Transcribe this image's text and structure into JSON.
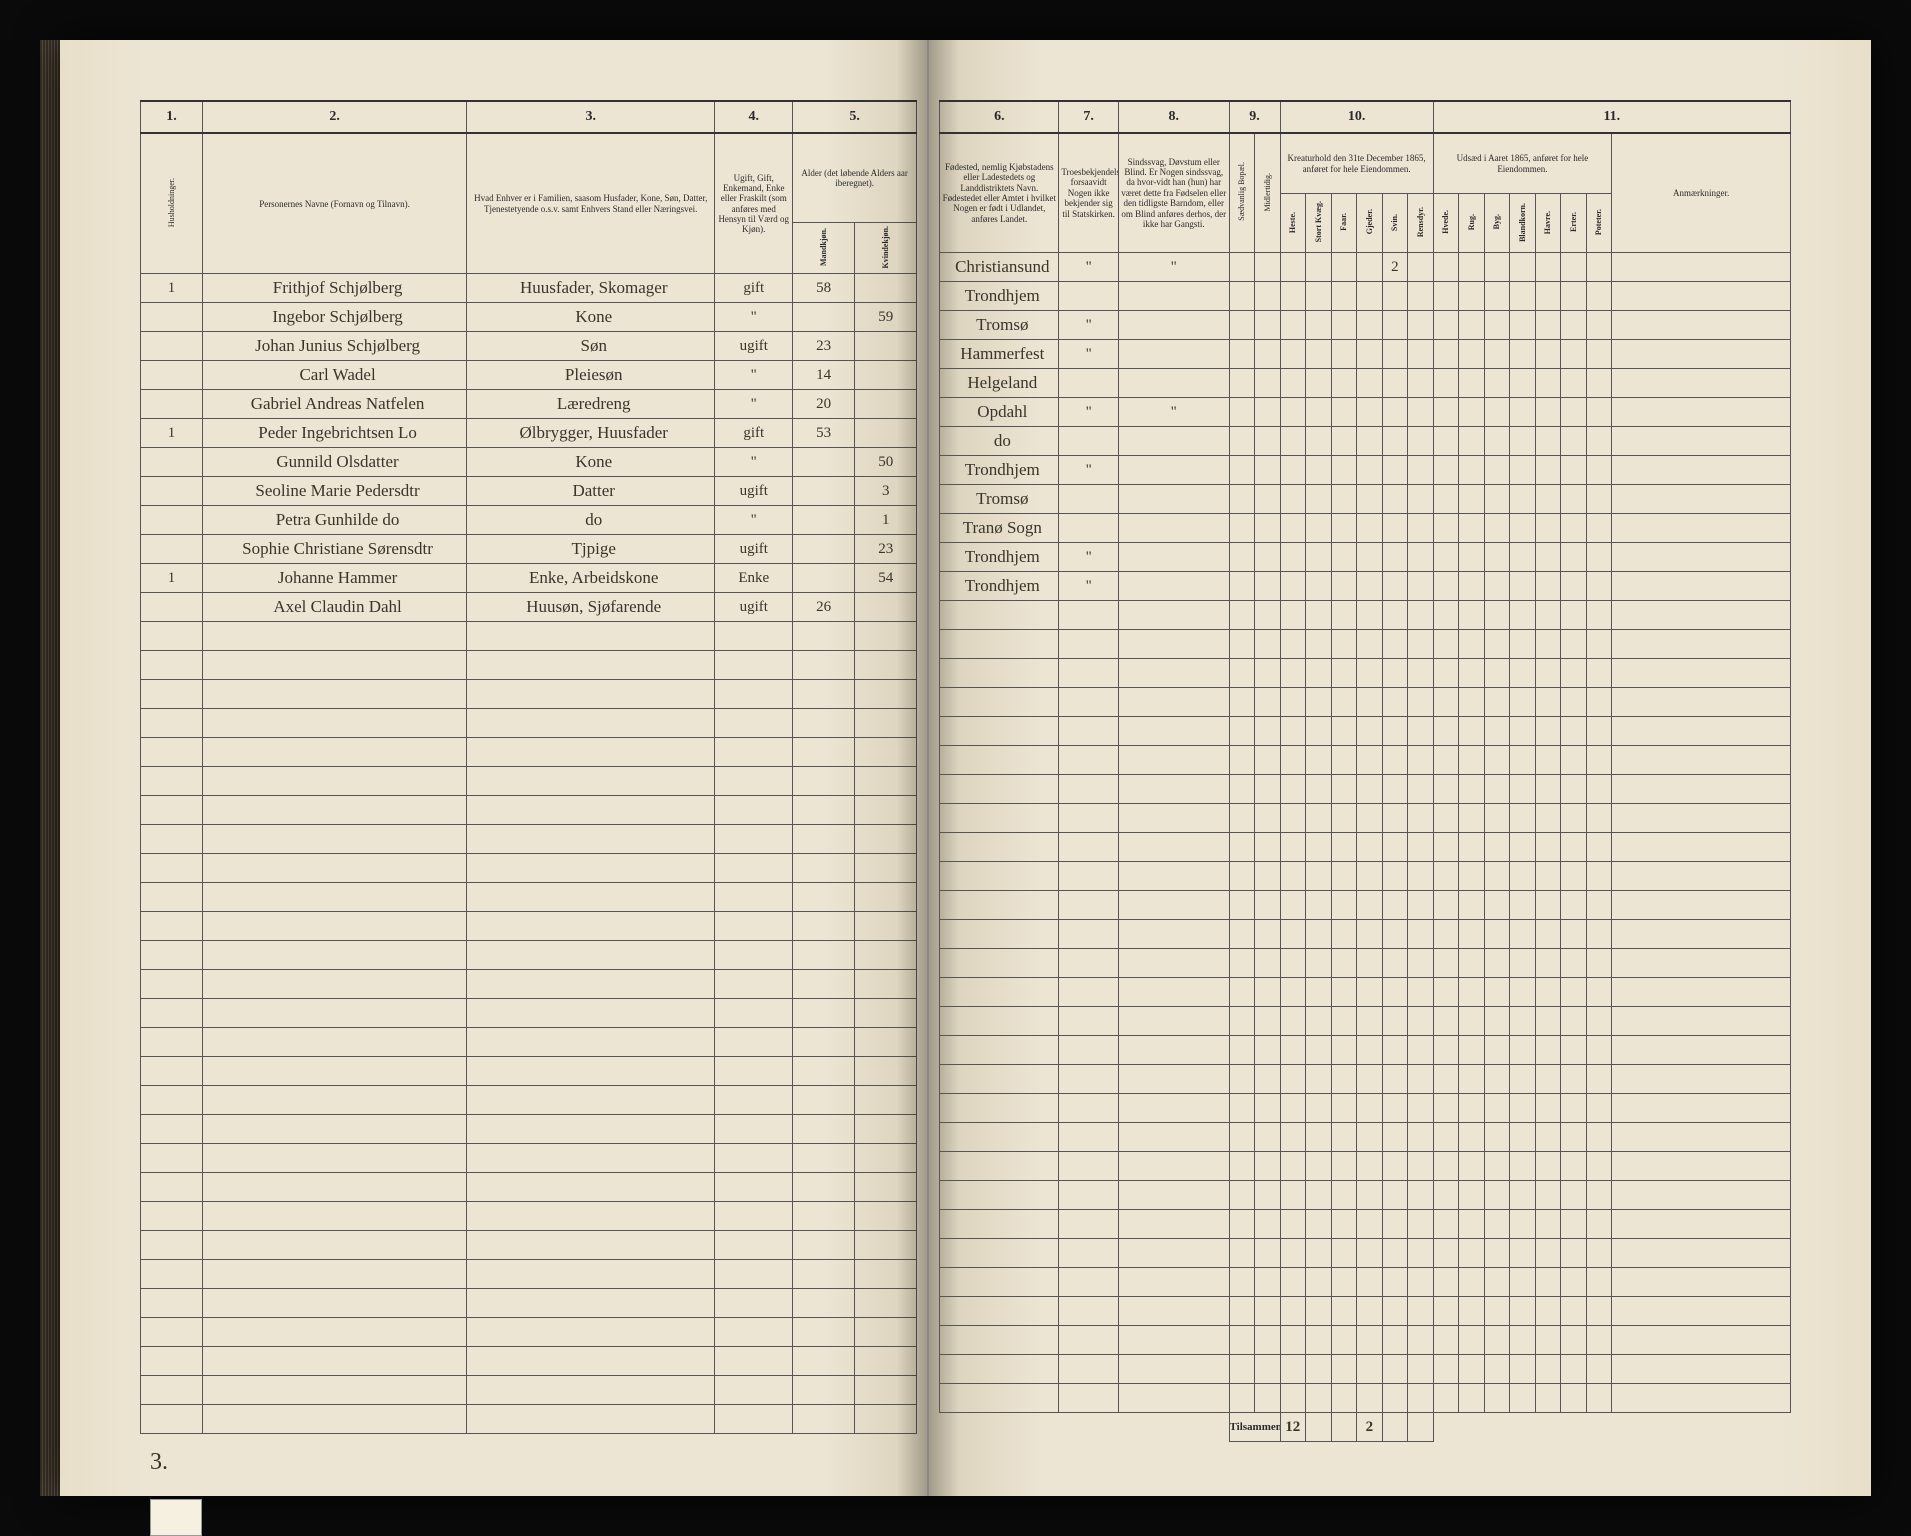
{
  "document": {
    "type": "census-ledger",
    "background_color": "#ede5d4",
    "ink_color": "#3a342a",
    "border_color": "#555555",
    "page_footer_left": "3."
  },
  "columns_left": {
    "c1": {
      "num": "1.",
      "label": "Husholdninger."
    },
    "c2": {
      "num": "2.",
      "label": "Personernes Navne (Fornavn og Tilnavn)."
    },
    "c3": {
      "num": "3.",
      "label": "Hvad Enhver er i Familien, saasom Husfader, Kone, Søn, Datter, Tjenestetyende o.s.v. samt Enhvers Stand eller Næringsvei."
    },
    "c4": {
      "num": "4.",
      "label": "Ugift, Gift, Enkemand, Enke eller Fraskilt (som anføres med Hensyn til Værd og Kjøn)."
    },
    "c5": {
      "num": "5.",
      "label": "Alder (det løbende Alders aar iberegnet).",
      "sub_a": "Mandkjøn.",
      "sub_b": "Kvindekjøn."
    }
  },
  "columns_right": {
    "c6": {
      "num": "6.",
      "label": "Fødested, nemlig Kjøbstadens eller Ladestedets og Landdistriktets Navn. Fødestedet eller Amtet i hvilket Nogen er født i Udlandet, anføres Landet."
    },
    "c7": {
      "num": "7.",
      "label": "Troesbekjendelse, forsaavidt Nogen ikke bekjender sig til Statskirken."
    },
    "c8": {
      "num": "8.",
      "label": "Sindssvag, Døvstum eller Blind. Er Nogen sindssvag, da hvor-vidt han (hun) har været dette fra Fødselen eller den tidligste Barndom, eller om Blind anføres derhos, der ikke har Gangsti."
    },
    "c9": {
      "num": "9.",
      "sub_a": "Sædvanlig Bopæl.",
      "sub_b": "Midlertidig."
    },
    "c10": {
      "num": "10.",
      "label": "Kreaturhold den 31te December 1865, anføret for hele Eiendommen.",
      "subs": [
        "Heste.",
        "Stort Kvæg.",
        "Faar.",
        "Gjeder.",
        "Svin.",
        "Rensdyr."
      ]
    },
    "c11": {
      "num": "11.",
      "label": "Udsæd i Aaret 1865, anføret for hele Eiendommen.",
      "subs": [
        "Hvede.",
        "Rug.",
        "Byg.",
        "Blandkorn.",
        "Havre.",
        "Erter.",
        "Poteter."
      ],
      "anm": "Anmærkninger."
    }
  },
  "rows": [
    {
      "hh": "1",
      "name": "Frithjof Schjølberg",
      "rel": "Huusfader, Skomager",
      "civ": "gift",
      "m": "58",
      "f": "",
      "birth": "Christiansund",
      "c7": "\"",
      "c8": "\"",
      "k": [
        "",
        "",
        "",
        "",
        "2",
        ""
      ]
    },
    {
      "hh": "",
      "name": "Ingebor Schjølberg",
      "rel": "Kone",
      "civ": "\"",
      "m": "",
      "f": "59",
      "birth": "Trondhjem",
      "c7": "",
      "c8": "",
      "k": [
        "",
        "",
        "",
        "",
        "",
        ""
      ]
    },
    {
      "hh": "",
      "name": "Johan Junius Schjølberg",
      "rel": "Søn",
      "civ": "ugift",
      "m": "23",
      "f": "",
      "birth": "Tromsø",
      "c7": "\"",
      "c8": "",
      "k": [
        "",
        "",
        "",
        "",
        "",
        ""
      ]
    },
    {
      "hh": "",
      "name": "Carl Wadel",
      "rel": "Pleiesøn",
      "civ": "\"",
      "m": "14",
      "f": "",
      "birth": "Hammerfest",
      "c7": "\"",
      "c8": "",
      "k": [
        "",
        "",
        "",
        "",
        "",
        ""
      ]
    },
    {
      "hh": "",
      "name": "Gabriel Andreas Natfelen",
      "rel": "Læredreng",
      "civ": "\"",
      "m": "20",
      "f": "",
      "birth": "Helgeland",
      "c7": "",
      "c8": "",
      "k": [
        "",
        "",
        "",
        "",
        "",
        ""
      ]
    },
    {
      "hh": "1",
      "name": "Peder Ingebrichtsen Lo",
      "rel": "Ølbrygger, Huusfader",
      "civ": "gift",
      "m": "53",
      "f": "",
      "birth": "Opdahl",
      "c7": "\"",
      "c8": "\"",
      "k": [
        "",
        "",
        "",
        "",
        "",
        ""
      ]
    },
    {
      "hh": "",
      "name": "Gunnild Olsdatter",
      "rel": "Kone",
      "civ": "\"",
      "m": "",
      "f": "50",
      "birth": "do",
      "c7": "",
      "c8": "",
      "k": [
        "",
        "",
        "",
        "",
        "",
        ""
      ]
    },
    {
      "hh": "",
      "name": "Seoline Marie Pedersdtr",
      "rel": "Datter",
      "civ": "ugift",
      "m": "",
      "f": "3",
      "birth": "Trondhjem",
      "c7": "\"",
      "c8": "",
      "k": [
        "",
        "",
        "",
        "",
        "",
        ""
      ]
    },
    {
      "hh": "",
      "name": "Petra Gunhilde do",
      "rel": "do",
      "civ": "\"",
      "m": "",
      "f": "1",
      "birth": "Tromsø",
      "c7": "",
      "c8": "",
      "k": [
        "",
        "",
        "",
        "",
        "",
        ""
      ]
    },
    {
      "hh": "",
      "name": "Sophie Christiane Sørensdtr",
      "rel": "Tjpige",
      "civ": "ugift",
      "m": "",
      "f": "23",
      "birth": "Tranø Sogn",
      "c7": "",
      "c8": "",
      "k": [
        "",
        "",
        "",
        "",
        "",
        ""
      ]
    },
    {
      "hh": "1",
      "name": "Johanne Hammer",
      "rel": "Enke, Arbeidskone",
      "civ": "Enke",
      "m": "",
      "f": "54",
      "birth": "Trondhjem",
      "c7": "\"",
      "c8": "",
      "k": [
        "",
        "",
        "",
        "",
        "",
        ""
      ]
    },
    {
      "hh": "",
      "name": "Axel Claudin Dahl",
      "rel": "Huusøn, Sjøfarende",
      "civ": "ugift",
      "m": "26",
      "f": "",
      "birth": "Trondhjem",
      "c7": "\"",
      "c8": "",
      "k": [
        "",
        "",
        "",
        "",
        "",
        ""
      ]
    }
  ],
  "empty_row_count": 28,
  "totals": {
    "label": "Tilsammen",
    "values": [
      "12",
      "",
      "",
      "2",
      "",
      ""
    ]
  }
}
